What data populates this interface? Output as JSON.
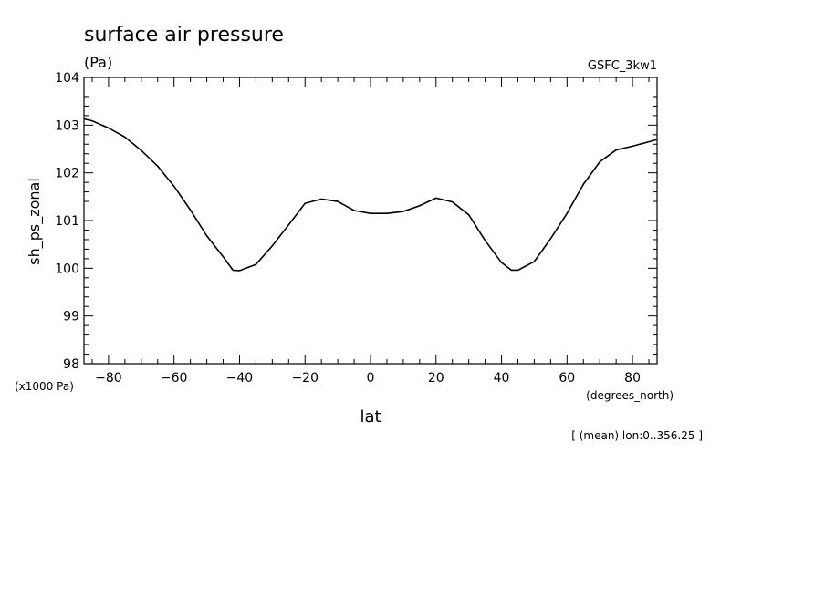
{
  "chart_data": {
    "type": "line",
    "title": "surface air pressure",
    "subtitle": "(Pa)",
    "source_label": "GSFC_3kw1",
    "ylabel": "sh_ps_zonal",
    "y_scale_note": "(x1000 Pa)",
    "xlabel": "lat",
    "x_unit_note": "(degrees_north)",
    "footnote": "[ (mean) lon:0..356.25 ]",
    "xlim": [
      -87.5,
      87.5
    ],
    "ylim": [
      98,
      104
    ],
    "x_ticks": [
      -80,
      -60,
      -40,
      -20,
      0,
      20,
      40,
      60,
      80
    ],
    "y_ticks": [
      98,
      99,
      100,
      101,
      102,
      103,
      104
    ],
    "grid": false,
    "series": [
      {
        "x": [
          -87.5,
          -85,
          -80,
          -75,
          -70,
          -65,
          -60,
          -55,
          -50,
          -45,
          -42,
          -40,
          -35,
          -30,
          -25,
          -20,
          -15,
          -10,
          -5,
          0,
          5,
          10,
          15,
          20,
          25,
          30,
          35,
          40,
          43,
          45,
          50,
          55,
          60,
          65,
          70,
          75,
          80,
          85,
          87.5
        ],
        "y": [
          103.13,
          103.09,
          102.94,
          102.75,
          102.47,
          102.14,
          101.72,
          101.22,
          100.68,
          100.24,
          99.96,
          99.95,
          100.08,
          100.47,
          100.91,
          101.36,
          101.45,
          101.4,
          101.21,
          101.15,
          101.15,
          101.19,
          101.31,
          101.47,
          101.39,
          101.12,
          100.58,
          100.12,
          99.96,
          99.96,
          100.14,
          100.62,
          101.15,
          101.76,
          102.23,
          102.48,
          102.56,
          102.65,
          102.7
        ]
      }
    ]
  }
}
